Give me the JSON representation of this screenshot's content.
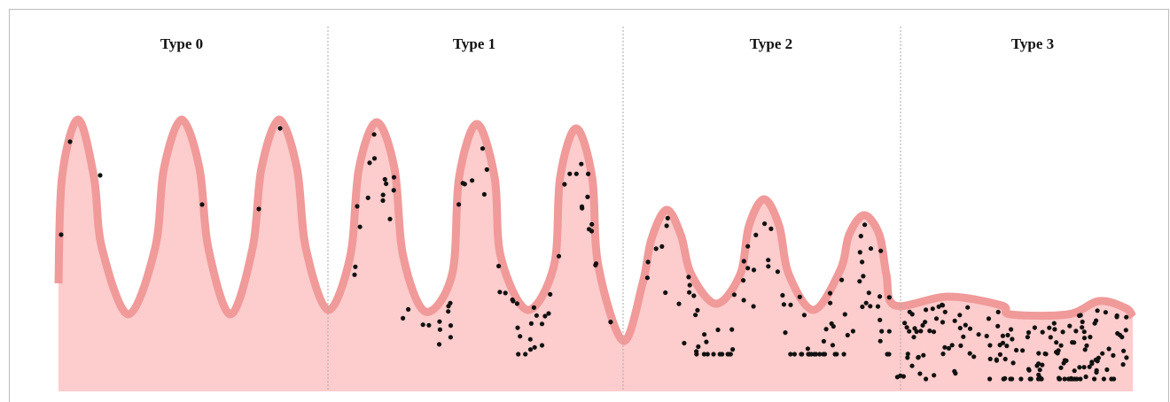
{
  "panels": [
    {
      "title": "Type 0"
    },
    {
      "title": "Type 1"
    },
    {
      "title": "Type 2"
    },
    {
      "title": "Type 3"
    }
  ]
}
